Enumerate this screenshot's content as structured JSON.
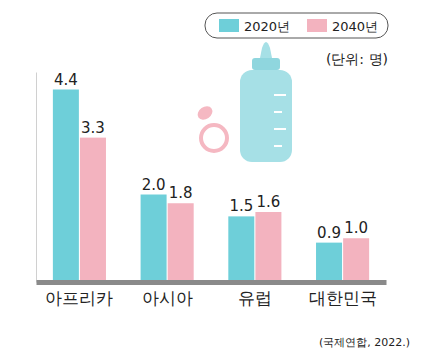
{
  "chart_data": {
    "type": "bar",
    "y_label": "(단위: 명)",
    "source": "(국제연합, 2022.)",
    "categories": [
      "아프리카",
      "아시아",
      "유럽",
      "대한민국"
    ],
    "series": [
      {
        "name": "2020년",
        "color": "#6ecfd9",
        "values": [
          4.4,
          2.0,
          1.5,
          0.9
        ],
        "value_labels": [
          "4.4",
          "2.0",
          "1.5",
          "0.9"
        ]
      },
      {
        "name": "2040년",
        "color": "#f3b3bf",
        "values": [
          3.3,
          1.8,
          1.6,
          1.0
        ],
        "value_labels": [
          "3.3",
          "1.8",
          "1.6",
          "1.0"
        ]
      }
    ],
    "ylim": [
      0,
      4.8
    ],
    "data_labels": true,
    "tick_labels": "x",
    "legend": "top-right",
    "grid": false
  }
}
